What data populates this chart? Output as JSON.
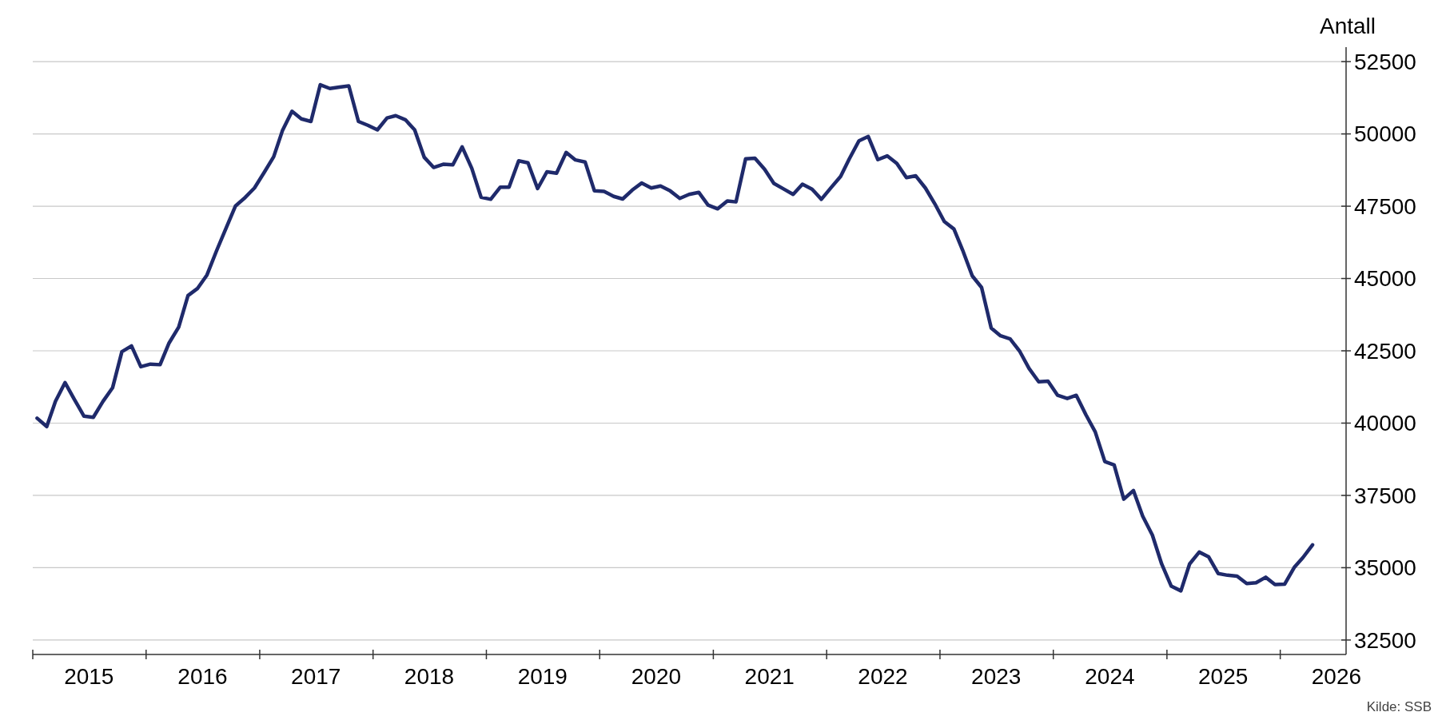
{
  "chart_data": {
    "type": "line",
    "ylabel": "Antall",
    "annotations": [
      "Kilde: SSB"
    ],
    "x": [
      "2015-01-15",
      "2015-02-15",
      "2015-03-15",
      "2015-04-15",
      "2015-05-15",
      "2015-06-15",
      "2015-07-15",
      "2015-08-15",
      "2015-09-15",
      "2015-10-15",
      "2015-11-15",
      "2015-12-15",
      "2016-01-15",
      "2016-02-15",
      "2016-03-15",
      "2016-04-15",
      "2016-05-15",
      "2016-06-15",
      "2016-07-15",
      "2016-08-15",
      "2016-09-15",
      "2016-10-15",
      "2016-11-15",
      "2016-12-15",
      "2017-01-15",
      "2017-02-15",
      "2017-03-15",
      "2017-04-15",
      "2017-05-15",
      "2017-06-15",
      "2017-07-15",
      "2017-08-15",
      "2017-09-15",
      "2017-10-15",
      "2017-11-15",
      "2017-12-15",
      "2018-01-15",
      "2018-02-15",
      "2018-03-15",
      "2018-04-15",
      "2018-05-15",
      "2018-06-15",
      "2018-07-15",
      "2018-08-15",
      "2018-09-15",
      "2018-10-15",
      "2018-11-15",
      "2018-12-15",
      "2019-01-15",
      "2019-02-15",
      "2019-03-15",
      "2019-04-15",
      "2019-05-15",
      "2019-06-15",
      "2019-07-15",
      "2019-08-15",
      "2019-09-15",
      "2019-10-15",
      "2019-11-15",
      "2019-12-15",
      "2020-01-15",
      "2020-02-15",
      "2020-03-15",
      "2020-04-15",
      "2020-05-15",
      "2020-06-15",
      "2020-07-15",
      "2020-08-15",
      "2020-09-15",
      "2020-10-15",
      "2020-11-15",
      "2020-12-15",
      "2021-01-15",
      "2021-02-15",
      "2021-03-15",
      "2021-04-15",
      "2021-05-15",
      "2021-06-15",
      "2021-07-15",
      "2021-08-15",
      "2021-09-15",
      "2021-10-15",
      "2021-11-15",
      "2021-12-15",
      "2022-01-15",
      "2022-02-15",
      "2022-03-15",
      "2022-04-15",
      "2022-05-15",
      "2022-06-15",
      "2022-07-15",
      "2022-08-15",
      "2022-09-15",
      "2022-10-15",
      "2022-11-15",
      "2022-12-15",
      "2023-01-15",
      "2023-02-15",
      "2023-03-15",
      "2023-04-15",
      "2023-05-15",
      "2023-06-15",
      "2023-07-15",
      "2023-08-15",
      "2023-09-15",
      "2023-10-15",
      "2023-11-15",
      "2023-12-15",
      "2024-01-15",
      "2024-02-15",
      "2024-03-15",
      "2024-04-15",
      "2024-05-15",
      "2024-06-15",
      "2024-07-15",
      "2024-08-15",
      "2024-09-15",
      "2024-10-15",
      "2024-11-15",
      "2024-12-15",
      "2025-01-15",
      "2025-02-15",
      "2025-03-15",
      "2025-04-15",
      "2025-05-15",
      "2025-06-15",
      "2025-07-15",
      "2025-08-15",
      "2025-09-15",
      "2025-10-15",
      "2025-11-15",
      "2025-12-15",
      "2026-01-15",
      "2026-02-15",
      "2026-03-15",
      "2026-04-15"
    ],
    "series": [
      {
        "color": "#1f2a6b",
        "values": [
          40170,
          39880,
          40750,
          41400,
          40820,
          40240,
          40200,
          40750,
          41220,
          42470,
          42670,
          41950,
          42040,
          42020,
          42770,
          43320,
          44410,
          44660,
          45120,
          45960,
          46750,
          47510,
          47800,
          48130,
          48660,
          49210,
          50110,
          50780,
          50520,
          50430,
          51700,
          51570,
          51620,
          51660,
          50430,
          50300,
          50140,
          50550,
          50630,
          50490,
          50140,
          49190,
          48840,
          48950,
          48930,
          49550,
          48810,
          47810,
          47740,
          48160,
          48160,
          49070,
          49000,
          48110,
          48690,
          48640,
          49360,
          49100,
          49030,
          48030,
          48010,
          47840,
          47750,
          48060,
          48300,
          48130,
          48200,
          48030,
          47770,
          47910,
          47980,
          47540,
          47410,
          47680,
          47650,
          49140,
          49160,
          48780,
          48290,
          48100,
          47910,
          48260,
          48090,
          47740,
          48140,
          48530,
          49140,
          49760,
          49910,
          49110,
          49240,
          48980,
          48490,
          48550,
          48130,
          47590,
          46970,
          46710,
          45980,
          45090,
          44690,
          43290,
          43020,
          42910,
          42480,
          41890,
          41430,
          41450,
          40960,
          40850,
          40960,
          40290,
          39700,
          38670,
          38550,
          37370,
          37670,
          36780,
          36130,
          35130,
          34360,
          34200,
          35130,
          35540,
          35380,
          34800,
          34740,
          34710,
          34450,
          34480,
          34670,
          34420,
          34430,
          35010,
          35350,
          35790
        ]
      }
    ],
    "xlim": [
      "2015-01-01",
      "2026-08-01"
    ],
    "xticks": [
      {
        "value": "2015-01-01",
        "label": null
      },
      {
        "value": "2015-07-01",
        "label": "2015"
      },
      {
        "value": "2016-01-01",
        "label": null
      },
      {
        "value": "2016-07-01",
        "label": "2016"
      },
      {
        "value": "2017-01-01",
        "label": null
      },
      {
        "value": "2017-07-01",
        "label": "2017"
      },
      {
        "value": "2018-01-01",
        "label": null
      },
      {
        "value": "2018-07-01",
        "label": "2018"
      },
      {
        "value": "2019-01-01",
        "label": null
      },
      {
        "value": "2019-07-01",
        "label": "2019"
      },
      {
        "value": "2020-01-01",
        "label": null
      },
      {
        "value": "2020-07-01",
        "label": "2020"
      },
      {
        "value": "2021-01-01",
        "label": null
      },
      {
        "value": "2021-07-01",
        "label": "2021"
      },
      {
        "value": "2022-01-01",
        "label": null
      },
      {
        "value": "2022-07-01",
        "label": "2022"
      },
      {
        "value": "2023-01-01",
        "label": null
      },
      {
        "value": "2023-07-01",
        "label": "2023"
      },
      {
        "value": "2024-01-01",
        "label": null
      },
      {
        "value": "2024-07-01",
        "label": "2024"
      },
      {
        "value": "2025-01-01",
        "label": null
      },
      {
        "value": "2025-07-01",
        "label": "2025"
      },
      {
        "value": "2026-01-01",
        "label": null
      },
      {
        "value": "2026-07-01",
        "label": "2026"
      }
    ],
    "ylim": [
      32000,
      53000
    ],
    "yticks": [
      32500,
      35000,
      37500,
      40000,
      42500,
      45000,
      47500,
      50000,
      52500
    ],
    "grid": "y",
    "marker": "none",
    "line_style": "solid"
  }
}
